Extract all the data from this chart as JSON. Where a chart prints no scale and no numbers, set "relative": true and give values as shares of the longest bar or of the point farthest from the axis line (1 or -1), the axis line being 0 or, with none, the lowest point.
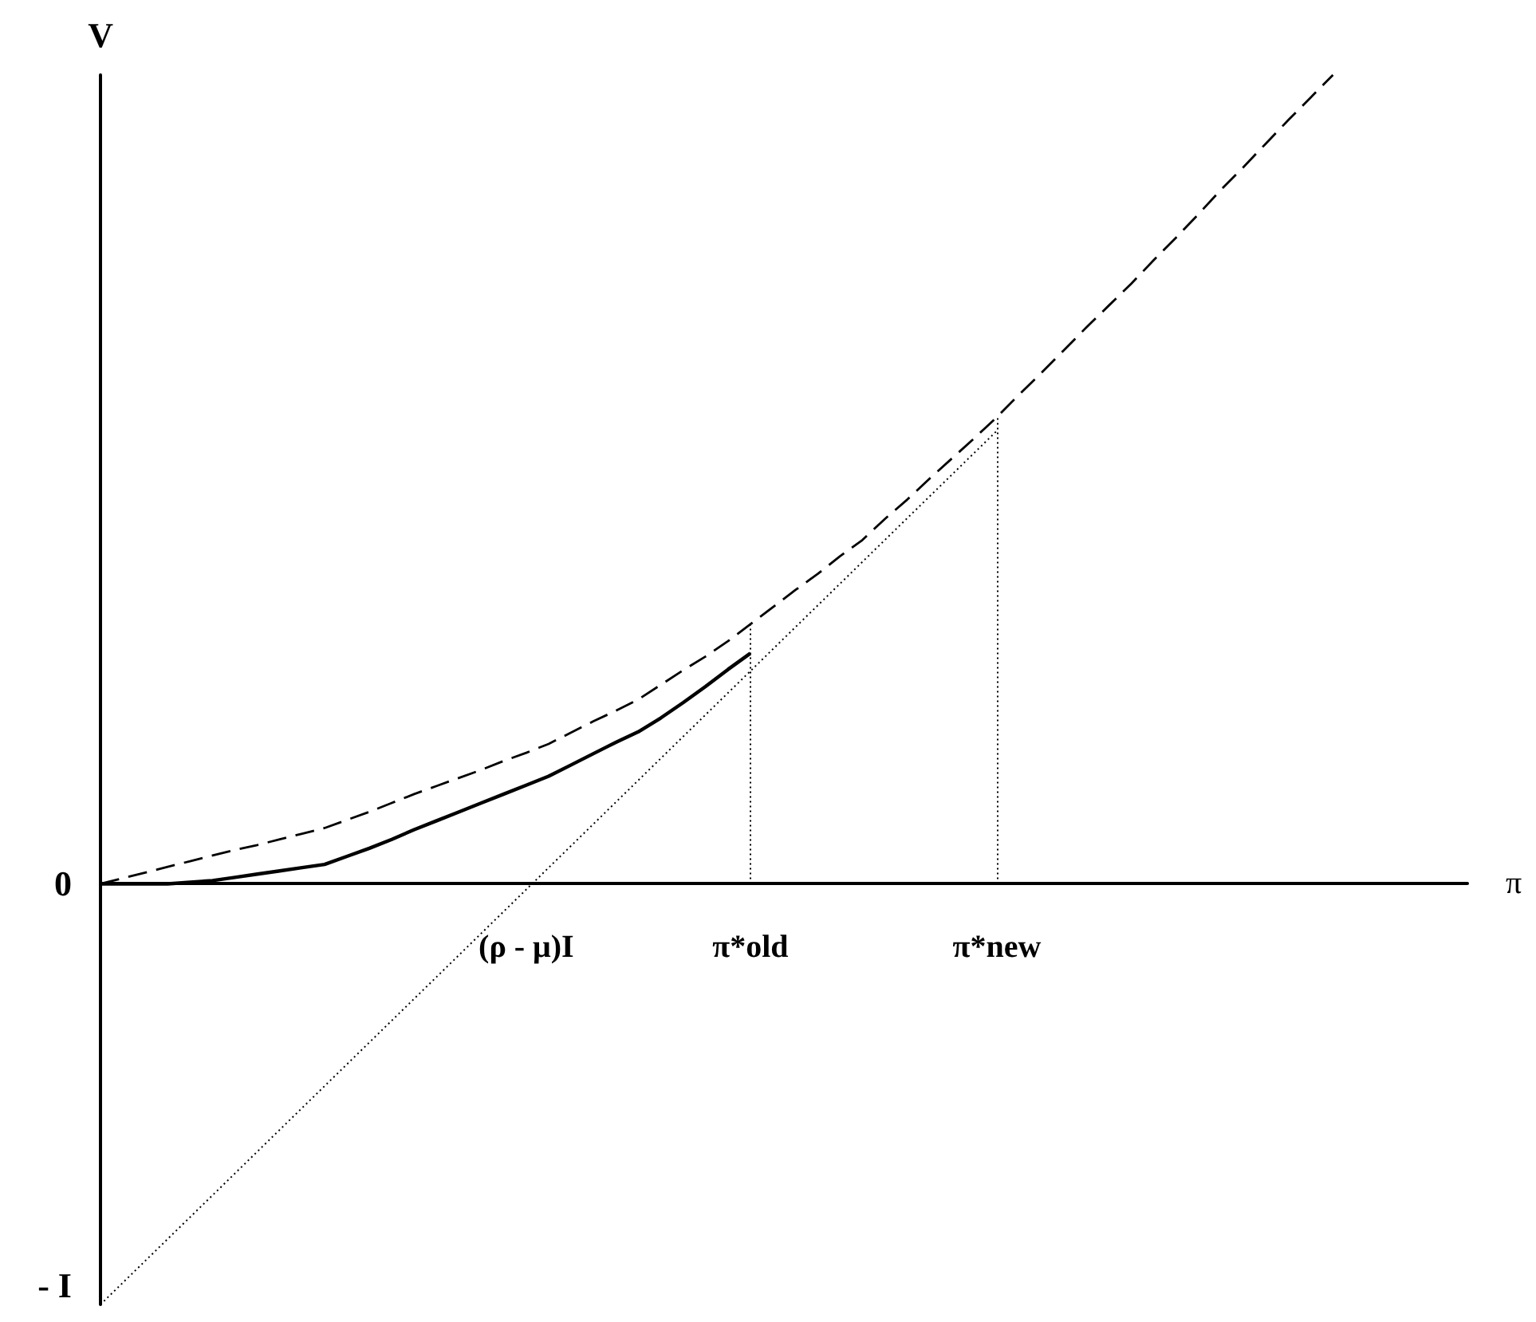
{
  "chart_data": {
    "type": "line",
    "relative": true,
    "xlabel": "π",
    "ylabel": "V",
    "grid": false,
    "marker": "none",
    "categories": [
      null,
      null,
      null,
      null,
      null,
      null,
      null,
      null,
      null,
      null,
      null,
      null,
      null,
      null,
      null,
      null,
      null,
      null,
      null,
      "(ρ - μ)I",
      null,
      null,
      null,
      null,
      null,
      null,
      null,
      null,
      null,
      "π*old",
      null,
      null,
      null,
      null,
      null,
      null,
      null,
      null,
      null,
      null,
      "π*new",
      null,
      null,
      null,
      null,
      null,
      null,
      null,
      null,
      null,
      null,
      null,
      null,
      null,
      null,
      null,
      null,
      null,
      null,
      null,
      null,
      null
    ],
    "series": [
      {
        "color": "#000000",
        "line_style": "dashed",
        "values": [
          0,
          0.007,
          0.014,
          0.021,
          0.028,
          0.035,
          0.042,
          0.048,
          0.055,
          0.062,
          0.069,
          0.079,
          0.089,
          0.1,
          0.111,
          0.121,
          0.131,
          0.141,
          0.152,
          0.162,
          0.173,
          0.187,
          0.201,
          0.214,
          0.228,
          0.246,
          0.264,
          0.281,
          0.3,
          0.321,
          0.342,
          0.363,
          0.383,
          0.405,
          0.425,
          0.451,
          0.475,
          0.501,
          0.526,
          0.551,
          0.577,
          0.605,
          0.632,
          0.66,
          0.688,
          0.715,
          0.742,
          0.771,
          0.799,
          0.828,
          0.858,
          0.886,
          0.915,
          0.944,
          0.972,
          1,
          null,
          null,
          null,
          null,
          null,
          null
        ]
      },
      {
        "color": "#000000",
        "line_style": "solid",
        "values": [
          0,
          0,
          0,
          0,
          0.002,
          0.004,
          0.008,
          0.012,
          0.016,
          0.02,
          0.024,
          0.034,
          0.044,
          0.055,
          0.067,
          0.078,
          0.089,
          0.1,
          0.111,
          0.122,
          0.133,
          0.147,
          0.161,
          0.175,
          0.188,
          0.205,
          0.224,
          0.244,
          0.265,
          0.285,
          null,
          null,
          null,
          null,
          null,
          null,
          null,
          null,
          null,
          null,
          null,
          null,
          null,
          null,
          null,
          null,
          null,
          null,
          null,
          null,
          null,
          null,
          null,
          null,
          null,
          null,
          null,
          null,
          null,
          null,
          null,
          null
        ]
      },
      {
        "color": "#000000",
        "line_style": "dotted",
        "values": [
          -0.52,
          -0.493,
          -0.466,
          -0.439,
          -0.412,
          -0.385,
          -0.358,
          -0.331,
          -0.304,
          -0.277,
          -0.25,
          -0.223,
          -0.196,
          -0.169,
          -0.142,
          -0.115,
          -0.088,
          -0.061,
          -0.034,
          -0.007,
          0.02,
          0.047,
          0.074,
          0.101,
          0.128,
          0.155,
          0.182,
          0.209,
          0.236,
          0.263,
          0.29,
          0.317,
          0.344,
          0.371,
          0.398,
          0.425,
          0.452,
          0.479,
          0.506,
          0.533,
          0.56,
          null,
          null,
          null,
          null,
          null,
          null,
          null,
          null,
          null,
          null,
          null,
          null,
          null,
          null,
          null,
          null,
          null,
          null,
          null,
          null,
          null
        ]
      }
    ],
    "ref_lines": [
      {
        "axis": "x",
        "value": "π*old",
        "line_style": "dotted",
        "color": "#000000"
      },
      {
        "axis": "x",
        "value": "π*new",
        "line_style": "dotted",
        "color": "#000000"
      }
    ],
    "annotations": [
      "0",
      "- I"
    ]
  }
}
